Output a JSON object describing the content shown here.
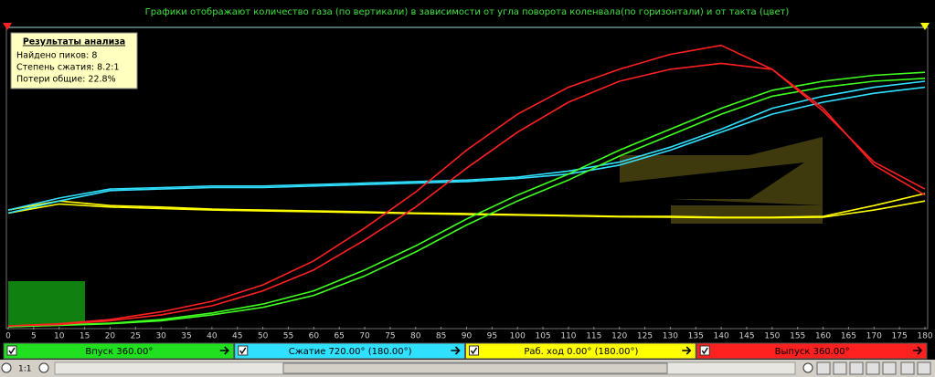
{
  "header": {
    "title": "Графики отображают количество газа (по вертикали) в зависимости от угла поворота коленвала(по горизонтали) и от такта (цвет)"
  },
  "info_box": {
    "title": "Результаты анализа",
    "lines": [
      "Найдено пиков: 8",
      "Степень сжатия: 8.2:1",
      "Потери общие: 22.8%"
    ]
  },
  "chart_data": {
    "type": "line",
    "x": [
      0,
      10,
      20,
      30,
      40,
      50,
      60,
      70,
      80,
      90,
      100,
      110,
      120,
      130,
      140,
      150,
      160,
      170,
      180
    ],
    "series": [
      {
        "color": "#ffff00",
        "values": [
          39,
          42,
          40.5,
          40,
          39.3,
          39,
          38.7,
          38.4,
          38,
          37.8,
          37.5,
          37.2,
          36.9,
          36.9,
          36.6,
          36.6,
          36.9,
          40.5,
          44.5
        ]
      },
      {
        "color": "#ffff00",
        "values": [
          38,
          41,
          40,
          39.5,
          39,
          38.7,
          38.4,
          38.1,
          37.8,
          37.5,
          37.3,
          37,
          36.7,
          36.6,
          36.4,
          36.4,
          36.6,
          39,
          42
        ]
      },
      {
        "color": "#30e0ff",
        "values": [
          39,
          43,
          46,
          46.5,
          47,
          47,
          47.5,
          48,
          48.5,
          49,
          50,
          52,
          55,
          60,
          66,
          73,
          77,
          80,
          82
        ]
      },
      {
        "color": "#30e0ff",
        "values": [
          38,
          42,
          45.5,
          46,
          46.5,
          46.5,
          47,
          47.5,
          48,
          48.5,
          49.5,
          51,
          54,
          59,
          65,
          71,
          75,
          78,
          80
        ]
      },
      {
        "color": "#40ff20",
        "values": [
          0,
          0.6,
          1.2,
          2.4,
          4.6,
          7.6,
          12,
          19,
          27,
          36,
          44,
          51,
          59,
          66,
          73,
          79,
          82,
          84,
          85
        ]
      },
      {
        "color": "#40ff20",
        "values": [
          0,
          0.5,
          1,
          2,
          4,
          6.5,
          10.5,
          17,
          25,
          34,
          42,
          49,
          57,
          64,
          71,
          77,
          80,
          82,
          83
        ]
      },
      {
        "color": "#ff2020",
        "values": [
          0.3,
          1,
          2.4,
          5,
          8.5,
          14,
          22,
          33,
          45,
          59,
          71,
          80,
          86,
          91,
          94,
          86,
          73,
          54,
          44
        ]
      },
      {
        "color": "#ff2020",
        "values": [
          0.3,
          0.8,
          2,
          4,
          7,
          12,
          19,
          29,
          40,
          53,
          65,
          75,
          82,
          86,
          88,
          86,
          72,
          55,
          46
        ]
      }
    ],
    "xlim": [
      0,
      180
    ],
    "ylim": [
      0,
      100
    ],
    "xticks": [
      0,
      5,
      10,
      15,
      20,
      25,
      30,
      35,
      40,
      45,
      50,
      55,
      60,
      65,
      70,
      75,
      80,
      85,
      90,
      95,
      100,
      105,
      110,
      115,
      120,
      125,
      130,
      135,
      140,
      145,
      150,
      155,
      160,
      165,
      170,
      175,
      180
    ]
  },
  "phases": [
    {
      "label": "Впуск 360.00°",
      "color": "#20e020"
    },
    {
      "label": "Сжатие 720.00° (180.00°)",
      "color": "#30e0ff"
    },
    {
      "label": "Раб. ход 0.00° (180.00°)",
      "color": "#ffff00"
    },
    {
      "label": "Выпуск 360.00°",
      "color": "#ff2020"
    }
  ],
  "toolbar": {
    "zoom": "1:1"
  }
}
